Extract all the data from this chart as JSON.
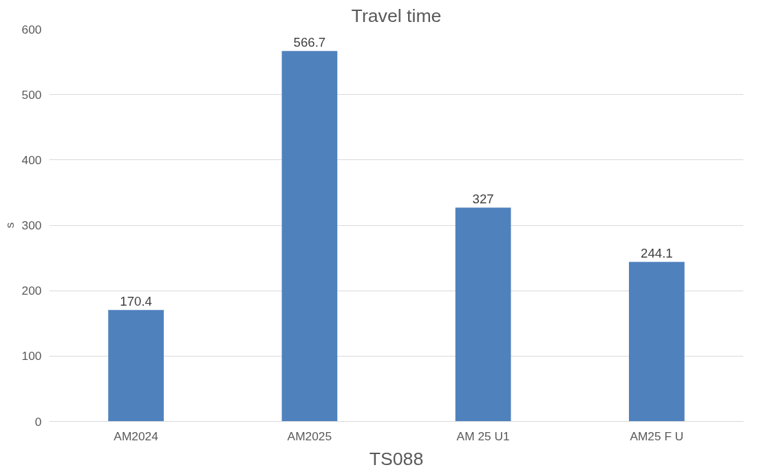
{
  "chart_data": {
    "type": "bar",
    "title": "Travel time",
    "xlabel": "TS088",
    "ylabel": "s",
    "categories": [
      "AM2024",
      "AM2025",
      "AM 25 U1",
      "AM25 F U"
    ],
    "values": [
      170.4,
      566.7,
      327,
      244.1
    ],
    "color": "#4f81bd",
    "ylim": [
      0,
      600
    ],
    "yticks": [
      0,
      100,
      200,
      300,
      400,
      500,
      600
    ],
    "grid": "y",
    "data_labels": true
  }
}
